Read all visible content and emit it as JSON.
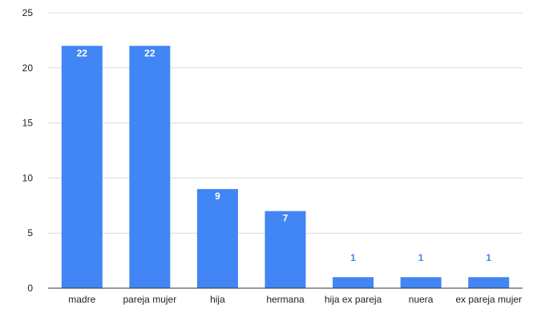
{
  "chart_data": {
    "type": "bar",
    "title": "",
    "xlabel": "",
    "ylabel": "",
    "categories": [
      "madre",
      "pareja mujer",
      "hija",
      "hermana",
      "hija ex pareja",
      "nuera",
      "ex pareja mujer"
    ],
    "values": [
      22,
      22,
      9,
      7,
      1,
      1,
      1
    ],
    "data_labels": [
      "22",
      "22",
      "9",
      "7",
      "1",
      "1",
      "1"
    ],
    "ylim": [
      0,
      25
    ],
    "yticks": [
      0,
      5,
      10,
      15,
      20,
      25
    ],
    "ytick_labels": [
      "0",
      "5",
      "10",
      "15",
      "20",
      "25"
    ],
    "grid": true,
    "legend": "none",
    "colors": {
      "bar": "#4285f4",
      "label_inside": "#ffffff",
      "label_outside": "#4285f4",
      "grid": "#d9d9d9",
      "axis": "#333333",
      "tick_text": "#222222"
    }
  }
}
